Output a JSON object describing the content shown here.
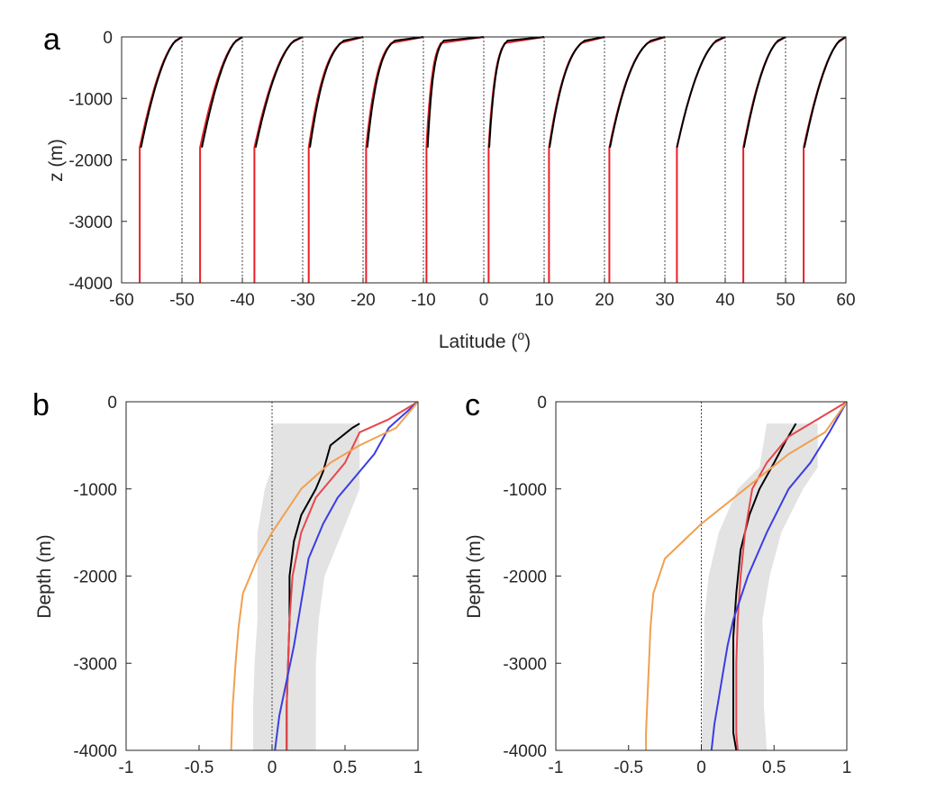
{
  "chart_data": [
    {
      "panel": "a",
      "type": "line",
      "xlabel": "Latitude (",
      "xlabel_sup": "o",
      "xlabel_end": ")",
      "ylabel": "z (m)",
      "xlim": [
        -60,
        60
      ],
      "ylim": [
        -4000,
        0
      ],
      "xticks": [
        "-60",
        "-50",
        "-40",
        "-30",
        "-20",
        "-10",
        "0",
        "10",
        "20",
        "30",
        "40",
        "50",
        "60"
      ],
      "yticks": [
        "0",
        "-1000",
        "-2000",
        "-3000",
        "-4000"
      ],
      "grid": false,
      "reference_lines_x": [
        -50,
        -40,
        -30,
        -20,
        -10,
        0,
        10,
        20,
        30,
        40,
        50,
        60
      ],
      "colors": {
        "black": "#000000",
        "red": "#e8202a",
        "ref": "#444444"
      },
      "profiles": [
        {
          "lat": -50,
          "red_deep_x": -57.0,
          "black_bottom_x": -56.8,
          "shape": 0.55
        },
        {
          "lat": -40,
          "red_deep_x": -47.0,
          "black_bottom_x": -46.7,
          "shape": 0.55
        },
        {
          "lat": -30,
          "red_deep_x": -38.0,
          "black_bottom_x": -37.8,
          "shape": 0.5
        },
        {
          "lat": -20,
          "red_deep_x": -29.0,
          "black_bottom_x": -28.8,
          "shape": 0.3
        },
        {
          "lat": -10,
          "red_deep_x": -19.5,
          "black_bottom_x": -19.3,
          "shape": 0.2
        },
        {
          "lat": 0,
          "red_deep_x": -9.5,
          "black_bottom_x": -9.3,
          "shape": 0.1
        },
        {
          "lat": 10,
          "red_deep_x": 0.8,
          "black_bottom_x": 0.9,
          "shape": 0.12
        },
        {
          "lat": 20,
          "red_deep_x": 10.8,
          "black_bottom_x": 10.9,
          "shape": 0.3
        },
        {
          "lat": 30,
          "red_deep_x": 20.8,
          "black_bottom_x": 20.9,
          "shape": 0.4
        },
        {
          "lat": 40,
          "red_deep_x": 32.0,
          "black_bottom_x": 32.0,
          "shape": 0.5
        },
        {
          "lat": 50,
          "red_deep_x": 43.0,
          "black_bottom_x": 43.1,
          "shape": 0.5
        },
        {
          "lat": 60,
          "red_deep_x": 53.0,
          "black_bottom_x": 53.1,
          "shape": 0.55
        }
      ],
      "black_depth_extent": -1800
    },
    {
      "panel": "b",
      "type": "line",
      "ylabel": "Depth (m)",
      "xlim": [
        -1,
        1
      ],
      "ylim": [
        -4000,
        0
      ],
      "xticks": [
        "-1",
        "-0.5",
        "0",
        "0.5",
        "1"
      ],
      "yticks": [
        "0",
        "-1000",
        "-2000",
        "-3000",
        "-4000"
      ],
      "grid": false,
      "reference_line_x": 0,
      "shaded_band": {
        "color": "#e3e3e3",
        "depth": [
          -250,
          -750,
          -1000,
          -1500,
          -2000,
          -2500,
          -3000,
          -3500,
          -4000
        ],
        "lower": [
          0.0,
          0.0,
          -0.05,
          -0.1,
          -0.1,
          -0.1,
          -0.12,
          -0.13,
          -0.13
        ],
        "upper": [
          0.6,
          0.6,
          0.6,
          0.48,
          0.36,
          0.32,
          0.3,
          0.3,
          0.3
        ]
      },
      "series": [
        {
          "color": "#000000",
          "x": [
            0.6,
            0.55,
            0.4,
            0.35,
            0.3,
            0.2,
            0.15,
            0.12,
            0.12,
            0.11,
            0.1,
            0.1
          ],
          "y": [
            -250,
            -300,
            -500,
            -800,
            -1000,
            -1300,
            -1600,
            -2000,
            -2500,
            -3000,
            -3500,
            -4000
          ]
        },
        {
          "color": "#e8464a",
          "x": [
            1.0,
            0.8,
            0.6,
            0.5,
            0.4,
            0.3,
            0.2,
            0.14,
            0.12,
            0.11,
            0.1,
            0.1
          ],
          "y": [
            0,
            -200,
            -350,
            -700,
            -900,
            -1100,
            -1500,
            -2000,
            -2500,
            -3000,
            -3500,
            -4000
          ]
        },
        {
          "color": "#3b3de3",
          "x": [
            1.0,
            0.8,
            0.7,
            0.55,
            0.45,
            0.35,
            0.25,
            0.2,
            0.15,
            0.1,
            0.05,
            0.02
          ],
          "y": [
            0,
            -300,
            -600,
            -900,
            -1100,
            -1400,
            -1800,
            -2300,
            -2800,
            -3200,
            -3600,
            -4000
          ]
        },
        {
          "color": "#f0a050",
          "x": [
            1.0,
            0.85,
            0.6,
            0.4,
            0.2,
            0.0,
            -0.1,
            -0.2,
            -0.23,
            -0.25,
            -0.27,
            -0.28
          ],
          "y": [
            0,
            -300,
            -500,
            -700,
            -1000,
            -1500,
            -1800,
            -2200,
            -2600,
            -3000,
            -3500,
            -4000
          ]
        }
      ]
    },
    {
      "panel": "c",
      "type": "line",
      "ylabel": "Depth (m)",
      "xlim": [
        -1,
        1
      ],
      "ylim": [
        -4000,
        0
      ],
      "xticks": [
        "-1",
        "-0.5",
        "0",
        "0.5",
        "1"
      ],
      "yticks": [
        "0",
        "-1000",
        "-2000",
        "-3000",
        "-4000"
      ],
      "grid": false,
      "reference_line_x": 0,
      "shaded_band": {
        "color": "#e3e3e3",
        "depth": [
          -250,
          -750,
          -1000,
          -1500,
          -2000,
          -2500,
          -3000,
          -3500,
          -4000
        ],
        "lower": [
          0.45,
          0.4,
          0.25,
          0.12,
          0.05,
          0.02,
          0.02,
          0.01,
          0.0
        ],
        "upper": [
          0.8,
          0.8,
          0.7,
          0.55,
          0.47,
          0.42,
          0.43,
          0.43,
          0.45
        ]
      },
      "series": [
        {
          "color": "#000000",
          "x": [
            0.65,
            0.58,
            0.5,
            0.4,
            0.33,
            0.27,
            0.24,
            0.22,
            0.22,
            0.22,
            0.22,
            0.24
          ],
          "y": [
            -250,
            -450,
            -700,
            -1000,
            -1300,
            -1700,
            -2200,
            -2700,
            -3200,
            -3600,
            -3800,
            -4000
          ]
        },
        {
          "color": "#e8464a",
          "x": [
            1.0,
            0.8,
            0.6,
            0.45,
            0.35,
            0.3,
            0.27,
            0.25,
            0.24,
            0.24,
            0.24,
            0.25
          ],
          "y": [
            0,
            -200,
            -400,
            -700,
            -1000,
            -1500,
            -2000,
            -2500,
            -3000,
            -3500,
            -3800,
            -4000
          ]
        },
        {
          "color": "#3b3de3",
          "x": [
            1.0,
            0.88,
            0.75,
            0.6,
            0.45,
            0.32,
            0.22,
            0.18,
            0.15,
            0.12,
            0.09,
            0.07
          ],
          "y": [
            0,
            -350,
            -700,
            -1000,
            -1500,
            -2000,
            -2500,
            -2800,
            -3100,
            -3400,
            -3700,
            -4000
          ]
        },
        {
          "color": "#f0a050",
          "x": [
            1.0,
            0.85,
            0.6,
            0.3,
            0.0,
            -0.25,
            -0.33,
            -0.35,
            -0.36,
            -0.37,
            -0.38,
            -0.38
          ],
          "y": [
            0,
            -350,
            -600,
            -1000,
            -1400,
            -1800,
            -2200,
            -2600,
            -3000,
            -3400,
            -3800,
            -4000
          ]
        }
      ]
    }
  ]
}
